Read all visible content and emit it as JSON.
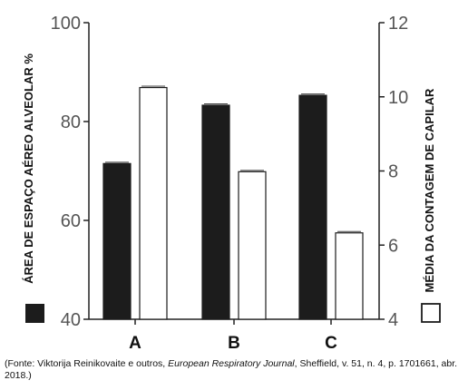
{
  "chart_data": {
    "type": "bar",
    "categories": [
      "A",
      "B",
      "C"
    ],
    "series": [
      {
        "name": "",
        "axis": "left",
        "color": "#1c1c1c",
        "values": [
          71.5,
          83.3,
          85.3
        ]
      },
      {
        "name": "",
        "axis": "right",
        "color": "#ffffff",
        "values": [
          10.25,
          7.98,
          6.33
        ]
      }
    ],
    "left_axis": {
      "label": "ÁREA DE ESPAÇO AÉREO ALVEOLAR %",
      "ylim": [
        40,
        100
      ],
      "ticks": [
        "40",
        "60",
        "80",
        "100"
      ]
    },
    "right_axis": {
      "label": "MÉDIA DA CONTAGEM DE CAPILAR",
      "ylim": [
        4,
        12
      ],
      "ticks": [
        "4",
        "6",
        "8",
        "10",
        "12"
      ]
    },
    "grid": false,
    "legend": "axis-label-swatches"
  },
  "source": {
    "prefix": "(Fonte: Viktorija Reinikovaite e outros, ",
    "journal": "European Respiratory Journal",
    "suffix": ", Sheffield, v. 51, n. 4, p. 1701661, abr. 2018.)"
  }
}
